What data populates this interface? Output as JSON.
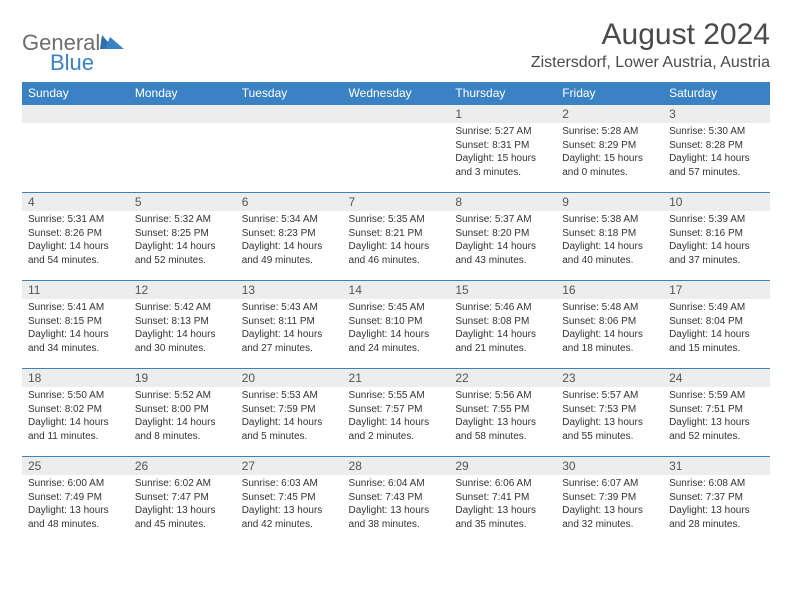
{
  "logo": {
    "general": "General",
    "blue": "Blue"
  },
  "title": "August 2024",
  "location": "Zistersdorf, Lower Austria, Austria",
  "colors": {
    "header_bg": "#3b82c4",
    "header_text": "#ffffff",
    "daynum_bg": "#ededed",
    "border": "#3b82c4",
    "body_text": "#333333",
    "logo_gray": "#6d6d6d",
    "logo_blue": "#3b82c4"
  },
  "fonts": {
    "title_size_pt": 22,
    "location_size_pt": 12,
    "header_size_pt": 9,
    "body_size_pt": 7.5
  },
  "weekdays": [
    "Sunday",
    "Monday",
    "Tuesday",
    "Wednesday",
    "Thursday",
    "Friday",
    "Saturday"
  ],
  "weeks": [
    [
      null,
      null,
      null,
      null,
      {
        "n": "1",
        "sr": "Sunrise: 5:27 AM",
        "ss": "Sunset: 8:31 PM",
        "d1": "Daylight: 15 hours",
        "d2": "and 3 minutes."
      },
      {
        "n": "2",
        "sr": "Sunrise: 5:28 AM",
        "ss": "Sunset: 8:29 PM",
        "d1": "Daylight: 15 hours",
        "d2": "and 0 minutes."
      },
      {
        "n": "3",
        "sr": "Sunrise: 5:30 AM",
        "ss": "Sunset: 8:28 PM",
        "d1": "Daylight: 14 hours",
        "d2": "and 57 minutes."
      }
    ],
    [
      {
        "n": "4",
        "sr": "Sunrise: 5:31 AM",
        "ss": "Sunset: 8:26 PM",
        "d1": "Daylight: 14 hours",
        "d2": "and 54 minutes."
      },
      {
        "n": "5",
        "sr": "Sunrise: 5:32 AM",
        "ss": "Sunset: 8:25 PM",
        "d1": "Daylight: 14 hours",
        "d2": "and 52 minutes."
      },
      {
        "n": "6",
        "sr": "Sunrise: 5:34 AM",
        "ss": "Sunset: 8:23 PM",
        "d1": "Daylight: 14 hours",
        "d2": "and 49 minutes."
      },
      {
        "n": "7",
        "sr": "Sunrise: 5:35 AM",
        "ss": "Sunset: 8:21 PM",
        "d1": "Daylight: 14 hours",
        "d2": "and 46 minutes."
      },
      {
        "n": "8",
        "sr": "Sunrise: 5:37 AM",
        "ss": "Sunset: 8:20 PM",
        "d1": "Daylight: 14 hours",
        "d2": "and 43 minutes."
      },
      {
        "n": "9",
        "sr": "Sunrise: 5:38 AM",
        "ss": "Sunset: 8:18 PM",
        "d1": "Daylight: 14 hours",
        "d2": "and 40 minutes."
      },
      {
        "n": "10",
        "sr": "Sunrise: 5:39 AM",
        "ss": "Sunset: 8:16 PM",
        "d1": "Daylight: 14 hours",
        "d2": "and 37 minutes."
      }
    ],
    [
      {
        "n": "11",
        "sr": "Sunrise: 5:41 AM",
        "ss": "Sunset: 8:15 PM",
        "d1": "Daylight: 14 hours",
        "d2": "and 34 minutes."
      },
      {
        "n": "12",
        "sr": "Sunrise: 5:42 AM",
        "ss": "Sunset: 8:13 PM",
        "d1": "Daylight: 14 hours",
        "d2": "and 30 minutes."
      },
      {
        "n": "13",
        "sr": "Sunrise: 5:43 AM",
        "ss": "Sunset: 8:11 PM",
        "d1": "Daylight: 14 hours",
        "d2": "and 27 minutes."
      },
      {
        "n": "14",
        "sr": "Sunrise: 5:45 AM",
        "ss": "Sunset: 8:10 PM",
        "d1": "Daylight: 14 hours",
        "d2": "and 24 minutes."
      },
      {
        "n": "15",
        "sr": "Sunrise: 5:46 AM",
        "ss": "Sunset: 8:08 PM",
        "d1": "Daylight: 14 hours",
        "d2": "and 21 minutes."
      },
      {
        "n": "16",
        "sr": "Sunrise: 5:48 AM",
        "ss": "Sunset: 8:06 PM",
        "d1": "Daylight: 14 hours",
        "d2": "and 18 minutes."
      },
      {
        "n": "17",
        "sr": "Sunrise: 5:49 AM",
        "ss": "Sunset: 8:04 PM",
        "d1": "Daylight: 14 hours",
        "d2": "and 15 minutes."
      }
    ],
    [
      {
        "n": "18",
        "sr": "Sunrise: 5:50 AM",
        "ss": "Sunset: 8:02 PM",
        "d1": "Daylight: 14 hours",
        "d2": "and 11 minutes."
      },
      {
        "n": "19",
        "sr": "Sunrise: 5:52 AM",
        "ss": "Sunset: 8:00 PM",
        "d1": "Daylight: 14 hours",
        "d2": "and 8 minutes."
      },
      {
        "n": "20",
        "sr": "Sunrise: 5:53 AM",
        "ss": "Sunset: 7:59 PM",
        "d1": "Daylight: 14 hours",
        "d2": "and 5 minutes."
      },
      {
        "n": "21",
        "sr": "Sunrise: 5:55 AM",
        "ss": "Sunset: 7:57 PM",
        "d1": "Daylight: 14 hours",
        "d2": "and 2 minutes."
      },
      {
        "n": "22",
        "sr": "Sunrise: 5:56 AM",
        "ss": "Sunset: 7:55 PM",
        "d1": "Daylight: 13 hours",
        "d2": "and 58 minutes."
      },
      {
        "n": "23",
        "sr": "Sunrise: 5:57 AM",
        "ss": "Sunset: 7:53 PM",
        "d1": "Daylight: 13 hours",
        "d2": "and 55 minutes."
      },
      {
        "n": "24",
        "sr": "Sunrise: 5:59 AM",
        "ss": "Sunset: 7:51 PM",
        "d1": "Daylight: 13 hours",
        "d2": "and 52 minutes."
      }
    ],
    [
      {
        "n": "25",
        "sr": "Sunrise: 6:00 AM",
        "ss": "Sunset: 7:49 PM",
        "d1": "Daylight: 13 hours",
        "d2": "and 48 minutes."
      },
      {
        "n": "26",
        "sr": "Sunrise: 6:02 AM",
        "ss": "Sunset: 7:47 PM",
        "d1": "Daylight: 13 hours",
        "d2": "and 45 minutes."
      },
      {
        "n": "27",
        "sr": "Sunrise: 6:03 AM",
        "ss": "Sunset: 7:45 PM",
        "d1": "Daylight: 13 hours",
        "d2": "and 42 minutes."
      },
      {
        "n": "28",
        "sr": "Sunrise: 6:04 AM",
        "ss": "Sunset: 7:43 PM",
        "d1": "Daylight: 13 hours",
        "d2": "and 38 minutes."
      },
      {
        "n": "29",
        "sr": "Sunrise: 6:06 AM",
        "ss": "Sunset: 7:41 PM",
        "d1": "Daylight: 13 hours",
        "d2": "and 35 minutes."
      },
      {
        "n": "30",
        "sr": "Sunrise: 6:07 AM",
        "ss": "Sunset: 7:39 PM",
        "d1": "Daylight: 13 hours",
        "d2": "and 32 minutes."
      },
      {
        "n": "31",
        "sr": "Sunrise: 6:08 AM",
        "ss": "Sunset: 7:37 PM",
        "d1": "Daylight: 13 hours",
        "d2": "and 28 minutes."
      }
    ]
  ]
}
